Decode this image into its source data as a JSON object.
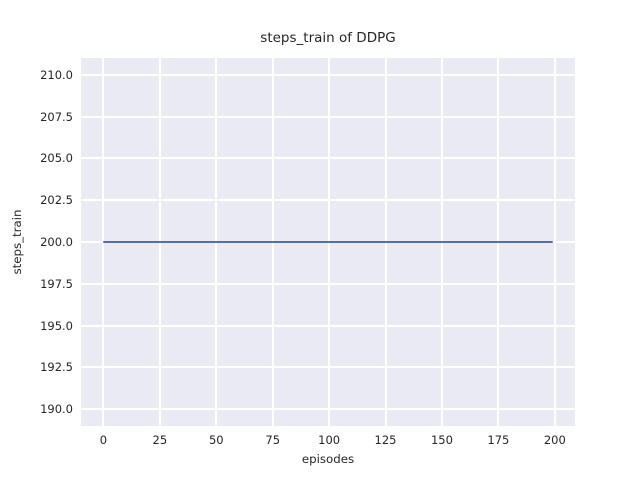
{
  "chart_data": {
    "type": "line",
    "title": "steps_train of DDPG",
    "xlabel": "episodes",
    "ylabel": "steps_train",
    "series": [
      {
        "name": "steps_train",
        "color": "#4c72b0",
        "x": [
          0,
          199
        ],
        "y": [
          200,
          200
        ],
        "description": "constant value 200 across all episodes 0-199"
      }
    ],
    "xlim": [
      -9.95,
      208.95
    ],
    "ylim": [
      189.0,
      211.0
    ],
    "xticks": {
      "values": [
        0,
        25,
        50,
        75,
        100,
        125,
        150,
        175,
        200
      ],
      "labels": [
        "0",
        "25",
        "50",
        "75",
        "100",
        "125",
        "150",
        "175",
        "200"
      ]
    },
    "yticks": {
      "values": [
        190.0,
        192.5,
        195.0,
        197.5,
        200.0,
        202.5,
        205.0,
        207.5,
        210.0
      ],
      "labels": [
        "190.0",
        "192.5",
        "195.0",
        "197.5",
        "200.0",
        "202.5",
        "205.0",
        "207.5",
        "210.0"
      ]
    },
    "grid": true,
    "legend": false,
    "style": {
      "figure_background": "#ffffff",
      "axes_background": "#eaeaf2",
      "grid_color": "#ffffff",
      "text_color": "#262626",
      "line_color": "#4c72b0"
    }
  }
}
